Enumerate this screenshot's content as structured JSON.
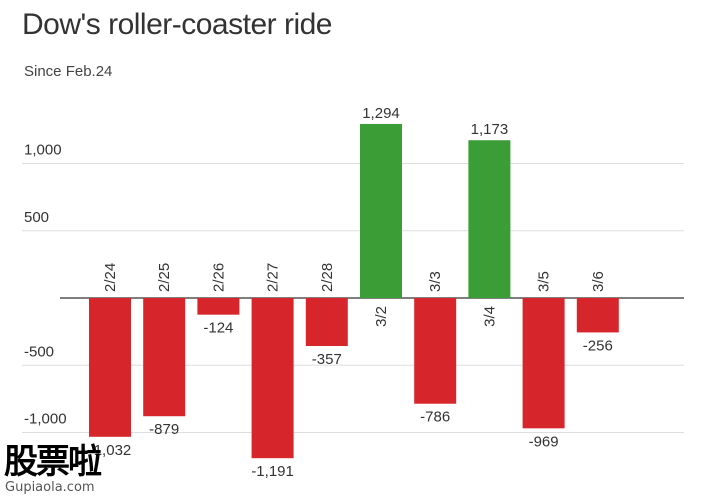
{
  "header": {
    "title": "Dow's roller-coaster ride",
    "subtitle": "Since Feb.24"
  },
  "watermark": {
    "logo_text": "股票啦",
    "url": "Gupiaola.com"
  },
  "colors": {
    "positive": "#3a9d35",
    "negative": "#d7262b",
    "grid": "#dddddd",
    "axis": "#333333",
    "text": "#333333"
  },
  "chart_data": {
    "type": "bar",
    "title": "Dow's roller-coaster ride",
    "subtitle": "Since Feb.24",
    "categories": [
      "2/24",
      "2/25",
      "2/26",
      "2/27",
      "2/28",
      "3/2",
      "3/3",
      "3/4",
      "3/5",
      "3/6"
    ],
    "values": [
      -1032,
      -879,
      -124,
      -1191,
      -357,
      1294,
      -786,
      1173,
      -969,
      -256
    ],
    "data_labels": [
      "-1,032",
      "-879",
      "-124",
      "-1,191",
      "-357",
      "1,294",
      "-786",
      "1,173",
      "-969",
      "-256"
    ],
    "y_ticks": [
      -1000,
      -500,
      500,
      1000
    ],
    "y_tick_labels": [
      "-1,000",
      "-500",
      "500",
      "1,000"
    ],
    "ylim": [
      -1200,
      1300
    ],
    "grid": true,
    "legend": false
  }
}
